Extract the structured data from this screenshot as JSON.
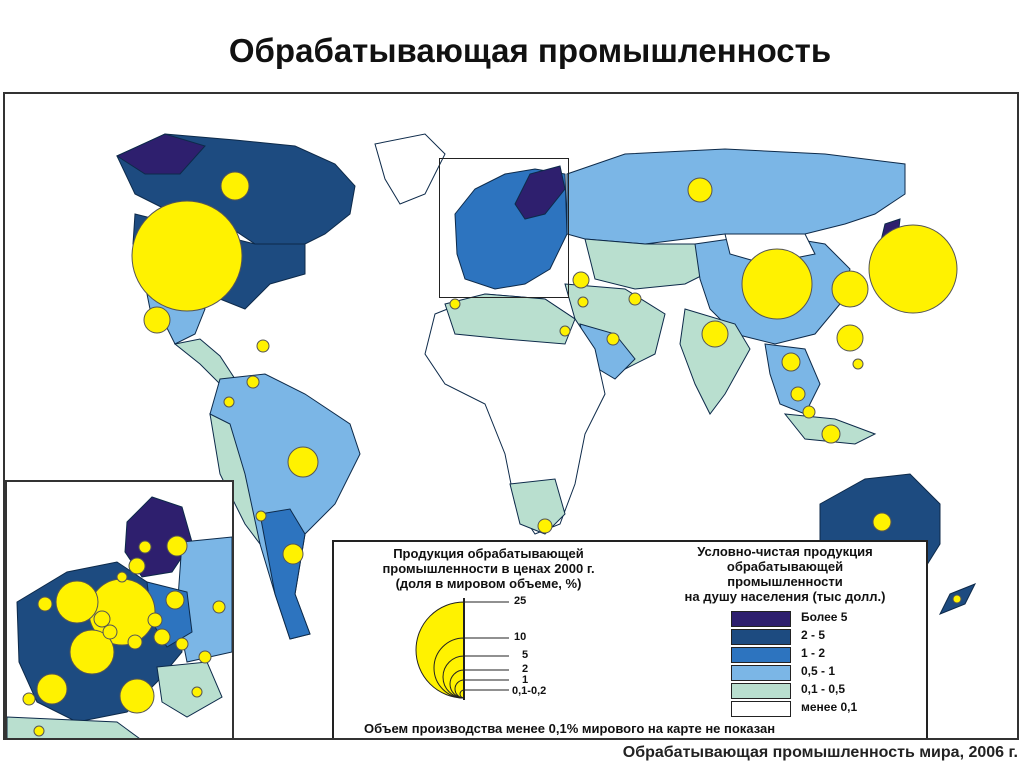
{
  "title": "Обрабатывающая промышленность",
  "caption": "Обрабатывающая промышленность мира, 2006 г.",
  "colors": {
    "over5": "#2e1f6e",
    "2to5": "#1d4b80",
    "1to2": "#2d74bf",
    "0_5to1": "#7bb6e6",
    "0_1to0_5": "#b9dfcf",
    "under0_1": "#ffffff",
    "circle": "#fff200",
    "border": "#1a3f66"
  },
  "legend": {
    "size_title": "Продукция обрабатывающей\nпромышленности в ценах 2000 г.\n(доля в мировом объеме, %)",
    "size_labels": [
      "25",
      "10",
      "5",
      "2",
      "1",
      "0,1-0,2"
    ],
    "color_title": "Условно-чистая продукция\nобрабатывающей\nпромышленности\nна душу населения (тыс долл.)",
    "color_labels": [
      "Более 5",
      "2 - 5",
      "1 - 2",
      "0,5 - 1",
      "0,1 - 0,5",
      "менее 0,1"
    ],
    "note": "Объем производства менее 0,1% мирового на карте не показан"
  }
}
